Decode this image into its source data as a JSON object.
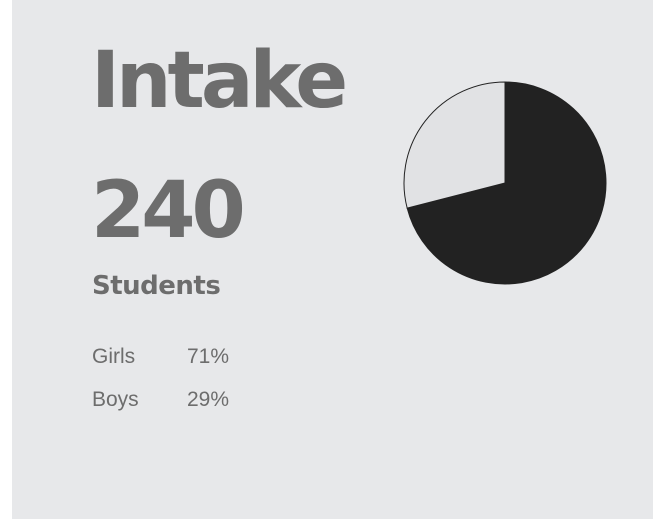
{
  "card": {
    "title": "Intake",
    "count": "240",
    "subtitle": "Students",
    "rows": [
      {
        "label": "Girls",
        "value": "71%"
      },
      {
        "label": "Boys",
        "value": "29%"
      }
    ]
  },
  "chart_data": {
    "type": "pie",
    "categories": [
      "Girls",
      "Boys"
    ],
    "values": [
      71,
      29
    ],
    "colors": [
      "#222222",
      "#e1e2e4"
    ],
    "start": "12 o'clock",
    "direction": "clockwise"
  }
}
